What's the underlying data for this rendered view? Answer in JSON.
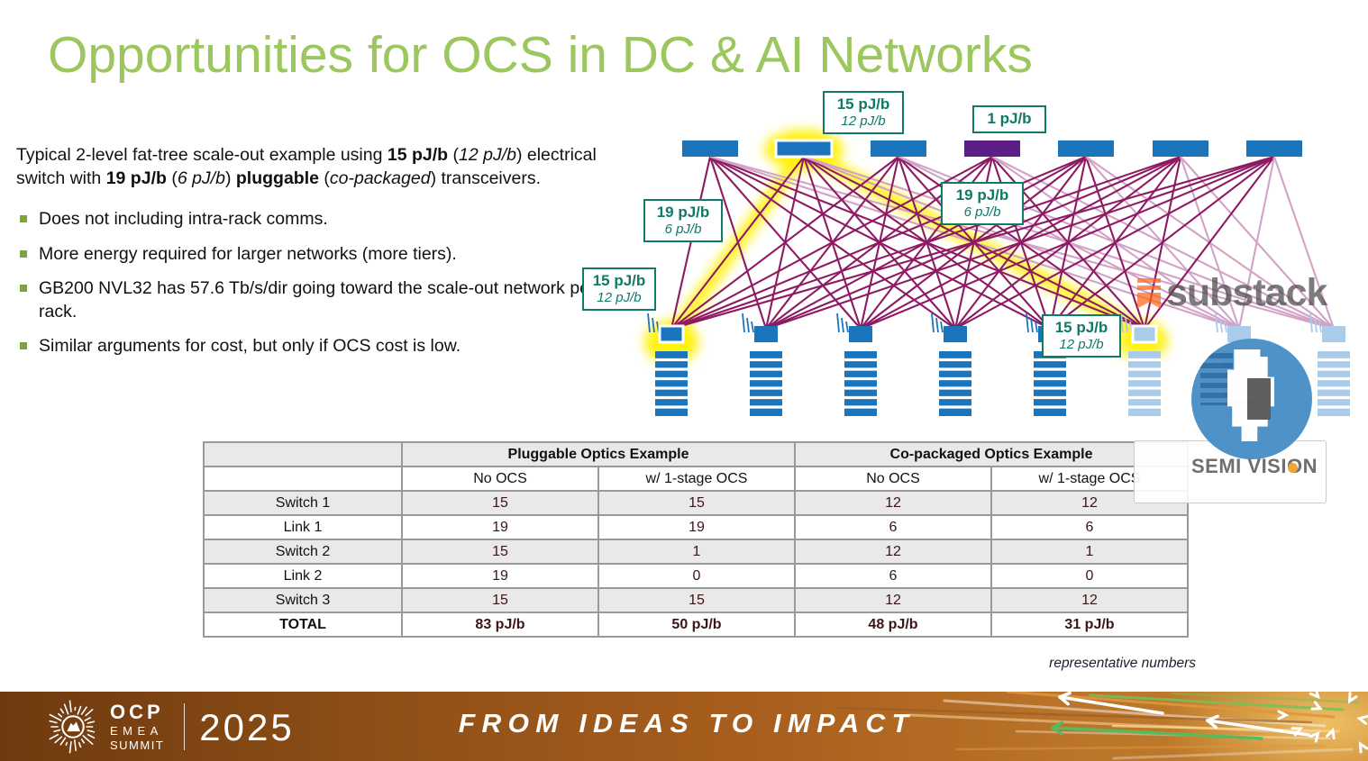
{
  "title": "Opportunities for OCS in DC & AI Networks",
  "intro_segments": [
    [
      "Typical 2-level fat-tree scale-out example using ",
      "n"
    ],
    [
      "15 pJ/b",
      "b"
    ],
    [
      " (",
      "n"
    ],
    [
      "12 pJ/b",
      "i"
    ],
    [
      ") electrical switch with ",
      "n"
    ],
    [
      "19 pJ/b",
      "b"
    ],
    [
      " (",
      "n"
    ],
    [
      "6 pJ/b",
      "i"
    ],
    [
      ") ",
      "n"
    ],
    [
      "pluggable",
      "b"
    ],
    [
      " (",
      "n"
    ],
    [
      "co-packaged",
      "i"
    ],
    [
      ") transceivers.",
      "n"
    ]
  ],
  "bullets": [
    "Does not including intra-rack comms.",
    "More energy required for larger networks (more tiers).",
    "GB200 NVL32 has 57.6 Tb/s/dir going toward the scale-out network per rack.",
    "Similar arguments for cost, but only if OCS cost is low."
  ],
  "diagram": {
    "labels": {
      "spine_switch_energy": {
        "line1": "15 pJ/b",
        "line2": "12 pJ/b"
      },
      "ocs_energy": {
        "line1": "1 pJ/b",
        "line2": ""
      },
      "link_energy_mid": {
        "line1": "19 pJ/b",
        "line2": "6 pJ/b"
      },
      "link_energy_left": {
        "line1": "19 pJ/b",
        "line2": "6 pJ/b"
      },
      "leaf_energy_left": {
        "line1": "15 pJ/b",
        "line2": "12 pJ/b"
      },
      "leaf_energy_right": {
        "line1": "15 pJ/b",
        "line2": "12 pJ/b"
      }
    },
    "spine_count": 7,
    "leaf_count": 8,
    "ocs_spine_index": 3,
    "highlight_spine_index": 1,
    "highlight_leaf_indices": [
      0,
      5
    ],
    "faded_leaf_from": 5
  },
  "table": {
    "group_headers": [
      "Pluggable Optics Example",
      "Co-packaged Optics Example"
    ],
    "col_headers": [
      "No OCS",
      "w/ 1-stage OCS",
      "No OCS",
      "w/ 1-stage OCS"
    ],
    "rows": [
      {
        "label": "Switch 1",
        "values": [
          "15",
          "15",
          "12",
          "12"
        ]
      },
      {
        "label": "Link 1",
        "values": [
          "19",
          "19",
          "6",
          "6"
        ]
      },
      {
        "label": "Switch 2",
        "values": [
          "15",
          "1",
          "12",
          "1"
        ]
      },
      {
        "label": "Link 2",
        "values": [
          "19",
          "0",
          "6",
          "0"
        ]
      },
      {
        "label": "Switch 3",
        "values": [
          "15",
          "15",
          "12",
          "12"
        ]
      },
      {
        "label": "TOTAL",
        "values": [
          "83 pJ/b",
          "50 pJ/b",
          "48 pJ/b",
          "31 pJ/b"
        ],
        "total": true
      }
    ]
  },
  "footnote": "representative numbers",
  "watermarks": {
    "substack": "substack",
    "semivision": "SEMI VISION"
  },
  "footer": {
    "org": "OCP",
    "event_line1": "EMEA",
    "event_line2": "SUMMIT",
    "year": "2025",
    "tagline": "FROM IDEAS TO IMPACT"
  },
  "colors": {
    "title_green": "#9CC65E",
    "bullet_green": "#7EA43D",
    "label_teal": "#0E7A67",
    "line_magenta": "#8E1A63",
    "line_faded": "#D2A3C6",
    "switch_blue": "#1B75BC",
    "switch_faded": "#AACBE9",
    "ocs_purple": "#5C1E87",
    "highlight_yellow": "#FFF100",
    "table_value_maroon": "#3C1518",
    "substack_orange": "#FF6719",
    "semivision_blue": "#4A8FC7",
    "footer_brown": "#6E3A10",
    "footer_orange": "#BC762A"
  }
}
